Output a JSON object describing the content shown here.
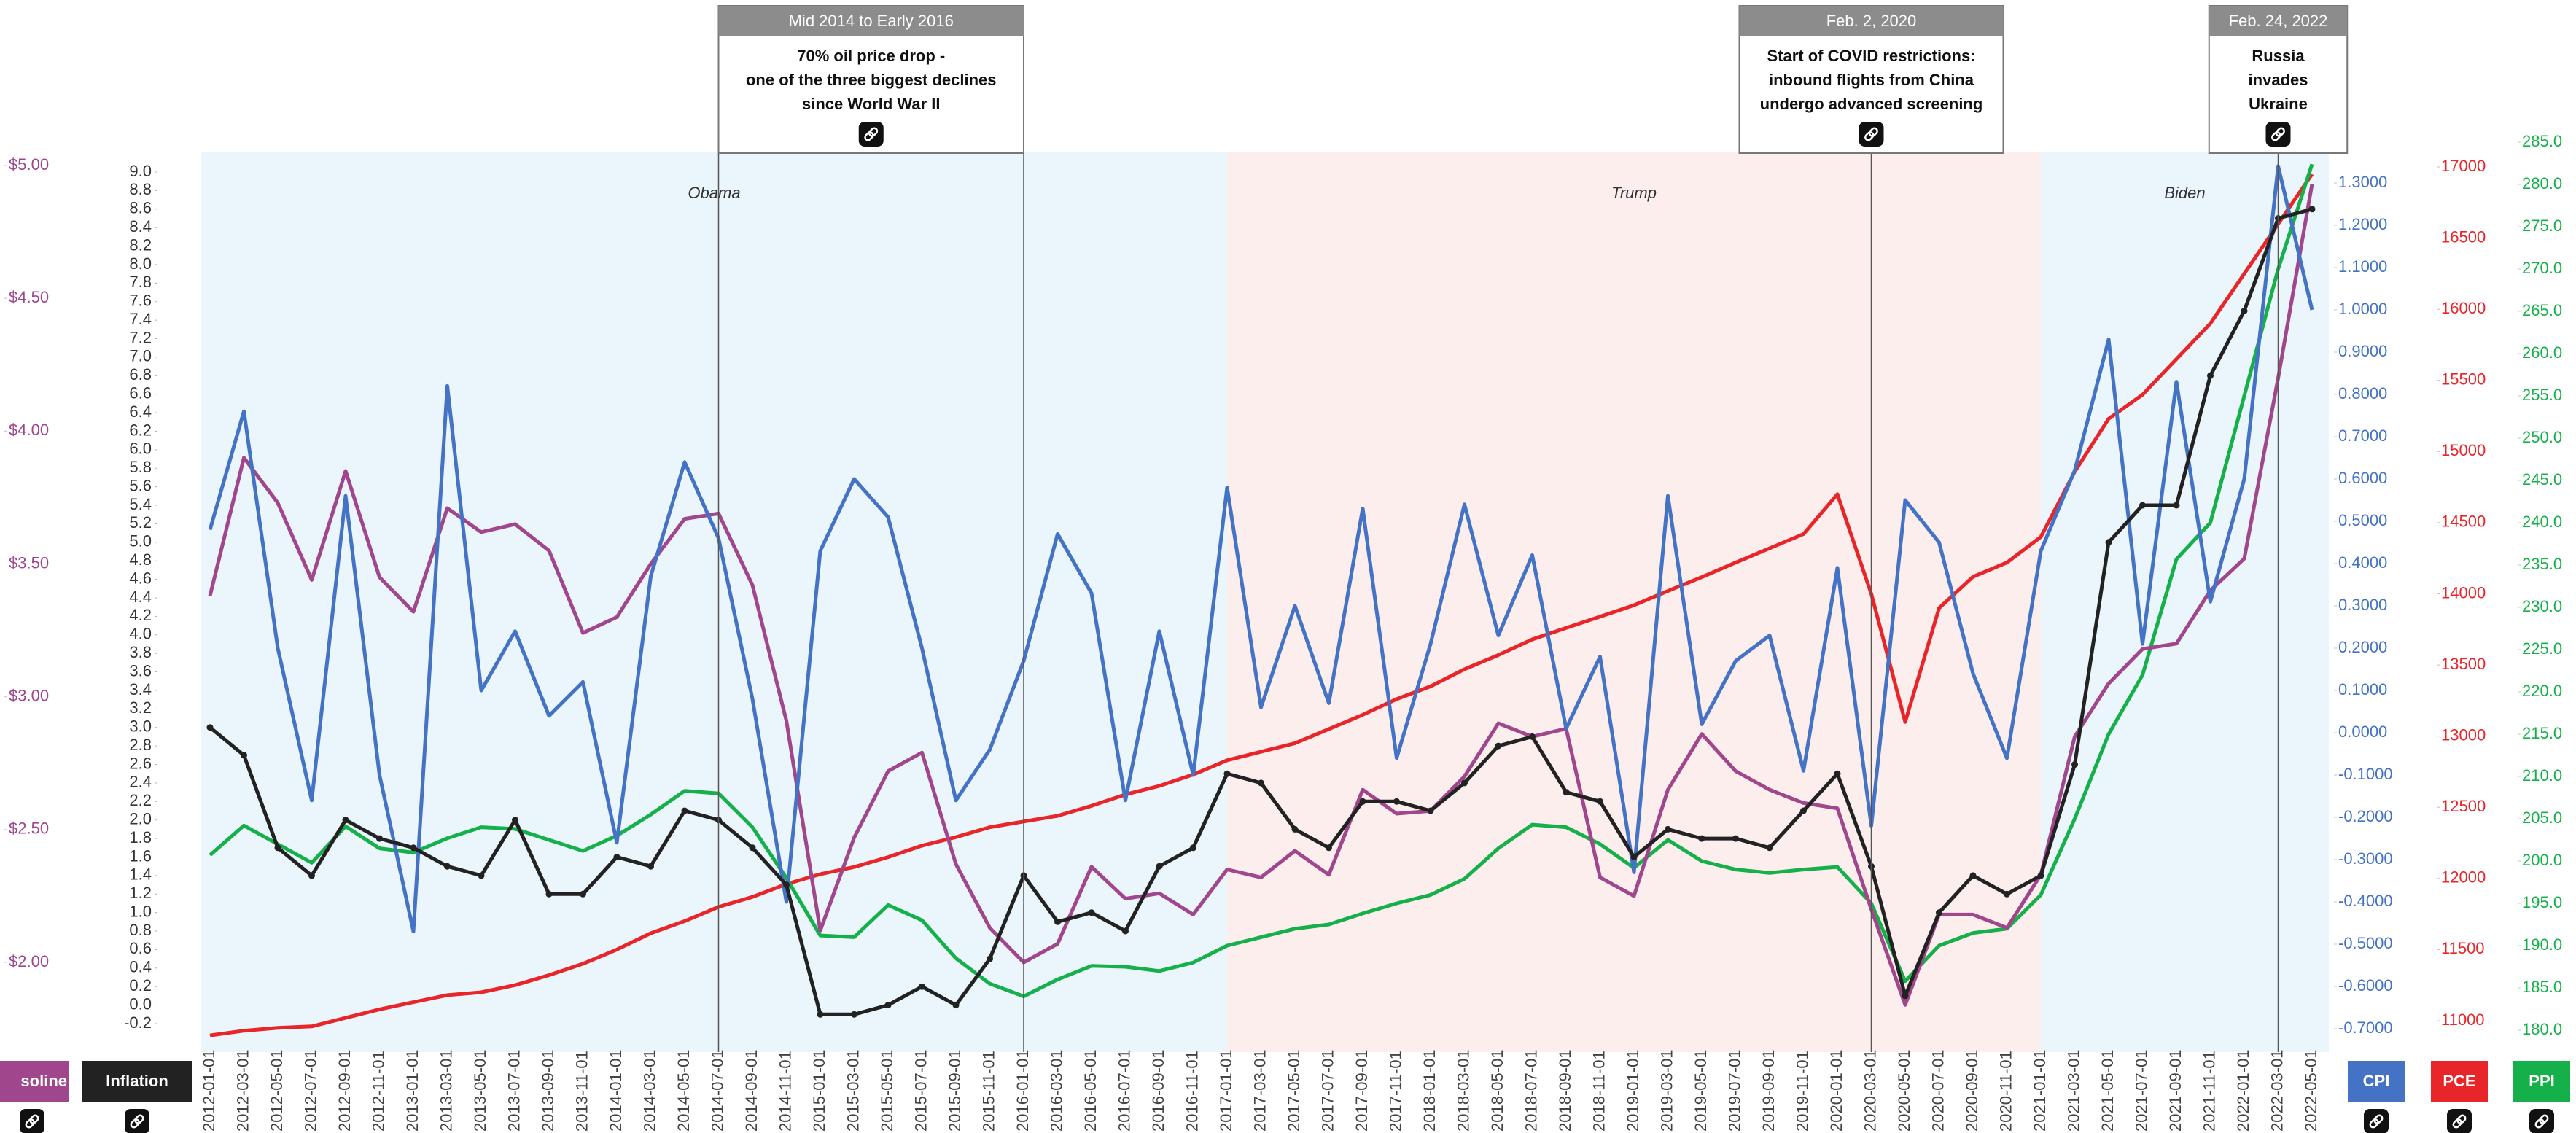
{
  "chart_data": {
    "type": "line",
    "categories": [
      "2012-01-01",
      "2012-03-01",
      "2012-05-01",
      "2012-07-01",
      "2012-09-01",
      "2012-11-01",
      "2013-01-01",
      "2013-03-01",
      "2013-05-01",
      "2013-07-01",
      "2013-09-01",
      "2013-11-01",
      "2014-01-01",
      "2014-03-01",
      "2014-05-01",
      "2014-07-01",
      "2014-09-01",
      "2014-11-01",
      "2015-01-01",
      "2015-03-01",
      "2015-05-01",
      "2015-07-01",
      "2015-09-01",
      "2015-11-01",
      "2016-01-01",
      "2016-03-01",
      "2016-05-01",
      "2016-07-01",
      "2016-09-01",
      "2016-11-01",
      "2017-01-01",
      "2017-03-01",
      "2017-05-01",
      "2017-07-01",
      "2017-09-01",
      "2017-11-01",
      "2018-01-01",
      "2018-03-01",
      "2018-05-01",
      "2018-07-01",
      "2018-09-01",
      "2018-11-01",
      "2019-01-01",
      "2019-03-01",
      "2019-05-01",
      "2019-07-01",
      "2019-09-01",
      "2019-11-01",
      "2020-01-01",
      "2020-03-01",
      "2020-05-01",
      "2020-07-01",
      "2020-09-01",
      "2020-11-01",
      "2021-01-01",
      "2021-03-01",
      "2021-05-01",
      "2021-07-01",
      "2021-09-01",
      "2021-11-01",
      "2022-01-01",
      "2022-03-01",
      "2022-05-01"
    ],
    "axes": [
      {
        "name": "Inflation",
        "lim": [
          -0.2,
          9.0
        ],
        "ticks": [
          -0.2,
          {
            "value": 0,
            "label": "0.0"
          },
          0.2,
          0.4,
          0.6,
          0.8,
          {
            "value": 1,
            "label": "1.0"
          },
          1.2,
          1.4,
          1.6,
          1.8,
          {
            "value": 2,
            "label": "2.0"
          },
          2.2,
          2.4,
          2.6,
          2.8,
          {
            "value": 3,
            "label": "3.0"
          },
          3.2,
          3.4,
          3.6,
          3.8,
          {
            "value": 4,
            "label": "4.0"
          },
          4.2,
          4.4,
          4.6,
          4.8,
          {
            "value": 5,
            "label": "5.0"
          },
          5.2,
          5.4,
          5.6,
          5.8,
          {
            "value": 6,
            "label": "6.0"
          },
          6.2,
          6.4,
          6.6,
          6.8,
          {
            "value": 7,
            "label": "7.0"
          },
          7.2,
          7.4,
          7.6,
          7.8,
          {
            "value": 8,
            "label": "8.0"
          },
          8.2,
          8.4,
          8.6,
          8.8,
          {
            "value": 9,
            "label": "9.0"
          }
        ]
      },
      {
        "name": "Gasoline",
        "lim": [
          2.0,
          5.0
        ],
        "ticks": [
          {
            "value": 2,
            "label": "$2.00"
          },
          {
            "value": 2.5,
            "label": "$2.50"
          },
          {
            "value": 3,
            "label": "$3.00"
          },
          {
            "value": 3.5,
            "label": "$3.50"
          },
          {
            "value": 4,
            "label": "$4.00"
          },
          {
            "value": 4.5,
            "label": "$4.50"
          },
          {
            "value": 5,
            "label": "$5.00"
          }
        ]
      },
      {
        "name": "CPI",
        "lim": [
          -0.7,
          1.3
        ],
        "ticks": [
          {
            "value": -0.7,
            "label": "-0.7000"
          },
          {
            "value": -0.6,
            "label": "-0.6000"
          },
          {
            "value": -0.5,
            "label": "-0.5000"
          },
          {
            "value": -0.4,
            "label": "-0.4000"
          },
          {
            "value": -0.3,
            "label": "-0.3000"
          },
          {
            "value": -0.2,
            "label": "-0.2000"
          },
          {
            "value": -0.1,
            "label": "-0.1000"
          },
          {
            "value": 0,
            "label": "0.0000"
          },
          {
            "value": 0.1,
            "label": "0.1000"
          },
          {
            "value": 0.2,
            "label": "0.2000"
          },
          {
            "value": 0.3,
            "label": "0.3000"
          },
          {
            "value": 0.4,
            "label": "0.4000"
          },
          {
            "value": 0.5,
            "label": "0.5000"
          },
          {
            "value": 0.6,
            "label": "0.6000"
          },
          {
            "value": 0.7,
            "label": "0.7000"
          },
          {
            "value": 0.8,
            "label": "0.8000"
          },
          {
            "value": 0.9,
            "label": "0.9000"
          },
          {
            "value": 1.0,
            "label": "1.0000"
          },
          {
            "value": 1.1,
            "label": "1.1000"
          },
          {
            "value": 1.2,
            "label": "1.2000"
          },
          {
            "value": 1.3,
            "label": "1.3000"
          }
        ]
      },
      {
        "name": "PCE",
        "lim": [
          11000,
          17000
        ],
        "ticks": [
          11000,
          11500,
          12000,
          12500,
          13000,
          13500,
          14000,
          14500,
          15000,
          15500,
          16000,
          16500,
          17000
        ]
      },
      {
        "name": "PPI",
        "lim": [
          180,
          285
        ],
        "ticks": [
          {
            "value": 180,
            "label": "180.0"
          },
          {
            "value": 185,
            "label": "185.0"
          },
          {
            "value": 190,
            "label": "190.0"
          },
          {
            "value": 195,
            "label": "195.0"
          },
          {
            "value": 200,
            "label": "200.0"
          },
          {
            "value": 205,
            "label": "205.0"
          },
          {
            "value": 210,
            "label": "210.0"
          },
          {
            "value": 215,
            "label": "215.0"
          },
          {
            "value": 220,
            "label": "220.0"
          },
          {
            "value": 225,
            "label": "225.0"
          },
          {
            "value": 230,
            "label": "230.0"
          },
          {
            "value": 235,
            "label": "235.0"
          },
          {
            "value": 240,
            "label": "240.0"
          },
          {
            "value": 245,
            "label": "245.0"
          },
          {
            "value": 250,
            "label": "250.0"
          },
          {
            "value": 255,
            "label": "255.0"
          },
          {
            "value": 260,
            "label": "260.0"
          },
          {
            "value": 265,
            "label": "265.0"
          },
          {
            "value": 270,
            "label": "270.0"
          },
          {
            "value": 275,
            "label": "275.0"
          },
          {
            "value": 280,
            "label": "280.0"
          },
          {
            "value": 285,
            "label": "285.0"
          }
        ]
      }
    ],
    "series": [
      {
        "name": "PCE",
        "color": "#e8262a",
        "axis": 3,
        "values": [
          10897,
          10930,
          10950,
          10960,
          11020,
          11080,
          11130,
          11180,
          11200,
          11250,
          11320,
          11400,
          11500,
          11615,
          11700,
          11800,
          11870,
          11960,
          12030,
          12080,
          12150,
          12230,
          12290,
          12360,
          12400,
          12440,
          12510,
          12590,
          12650,
          12730,
          12830,
          12890,
          12950,
          13050,
          13150,
          13260,
          13350,
          13470,
          13570,
          13680,
          13760,
          13840,
          13920,
          14020,
          14118,
          14220,
          14320,
          14420,
          14700,
          14000,
          13100,
          13900,
          14120,
          14220,
          14400,
          14858,
          15230,
          15400,
          15650,
          15900,
          16250,
          16600,
          16950
        ]
      },
      {
        "name": "PPI",
        "color": "#16b04a",
        "axis": 4,
        "values": [
          200.7,
          204.2,
          202.0,
          199.8,
          204.1,
          201.5,
          201.0,
          202.7,
          204.0,
          203.8,
          202.5,
          201.2,
          203.0,
          205.5,
          208.3,
          208.0,
          204.0,
          198.0,
          191.2,
          191.0,
          194.8,
          193.0,
          188.5,
          185.5,
          184.0,
          186.0,
          187.6,
          187.5,
          187.0,
          188.0,
          190.0,
          191.0,
          192.0,
          192.5,
          193.8,
          195.0,
          196.0,
          197.9,
          201.5,
          204.3,
          204.0,
          202.0,
          199.2,
          202.5,
          200.0,
          199.0,
          198.6,
          199.0,
          199.3,
          195.0,
          185.8,
          190.0,
          191.5,
          192.0,
          196.0,
          205.0,
          215.0,
          222.0,
          235.7,
          240.0,
          255.0,
          270.0,
          282.4
        ]
      },
      {
        "name": "Gasoline",
        "color": "#a0468c",
        "axis": 1,
        "values": [
          3.38,
          3.9,
          3.73,
          3.44,
          3.85,
          3.45,
          3.32,
          3.71,
          3.62,
          3.65,
          3.55,
          3.24,
          3.3,
          3.5,
          3.67,
          3.69,
          3.42,
          2.91,
          2.12,
          2.47,
          2.72,
          2.79,
          2.37,
          2.13,
          2.0,
          2.07,
          2.36,
          2.24,
          2.26,
          2.18,
          2.35,
          2.32,
          2.42,
          2.33,
          2.65,
          2.56,
          2.57,
          2.7,
          2.9,
          2.85,
          2.88,
          2.32,
          2.25,
          2.65,
          2.86,
          2.72,
          2.65,
          2.6,
          2.58,
          2.2,
          1.84,
          2.18,
          2.18,
          2.13,
          2.33,
          2.85,
          3.05,
          3.18,
          3.2,
          3.4,
          3.52,
          4.2,
          4.93
        ]
      },
      {
        "name": "CPI",
        "color": "#4472c4",
        "axis": 2,
        "values": [
          0.48,
          0.76,
          0.2,
          -0.16,
          0.56,
          -0.1,
          -0.47,
          0.82,
          0.1,
          0.24,
          0.04,
          0.12,
          -0.26,
          0.37,
          0.64,
          0.46,
          0.08,
          -0.4,
          0.43,
          0.6,
          0.51,
          0.2,
          -0.16,
          -0.04,
          0.17,
          0.47,
          0.33,
          -0.16,
          0.24,
          -0.1,
          0.58,
          0.06,
          0.3,
          0.07,
          0.53,
          -0.06,
          0.21,
          0.54,
          0.23,
          0.42,
          0.01,
          0.18,
          -0.33,
          0.56,
          0.02,
          0.17,
          0.23,
          -0.09,
          0.39,
          -0.22,
          0.55,
          0.45,
          0.14,
          -0.06,
          0.43,
          0.62,
          0.93,
          0.21,
          0.83,
          0.31,
          0.6,
          1.34,
          1.0
        ]
      },
      {
        "name": "Inflation",
        "color": "#222222",
        "axis": 0,
        "values": [
          3.0,
          2.7,
          1.7,
          1.4,
          2.0,
          1.8,
          1.7,
          1.5,
          1.4,
          2.0,
          1.2,
          1.2,
          1.6,
          1.5,
          2.1,
          2.0,
          1.7,
          1.3,
          -0.1,
          -0.1,
          0.0,
          0.2,
          0.0,
          0.5,
          1.4,
          0.9,
          1.0,
          0.8,
          1.5,
          1.7,
          2.5,
          2.4,
          1.9,
          1.7,
          2.2,
          2.2,
          2.1,
          2.4,
          2.8,
          2.9,
          2.3,
          2.2,
          1.6,
          1.9,
          1.8,
          1.8,
          1.7,
          2.1,
          2.5,
          1.5,
          0.1,
          1.0,
          1.4,
          1.2,
          1.4,
          2.6,
          5.0,
          5.4,
          5.4,
          6.8,
          7.5,
          8.5,
          8.6
        ]
      }
    ],
    "periods": [
      {
        "name": "Obama",
        "start": "2012-01-01"
      },
      {
        "name": "Trump",
        "start": "2017-01-01"
      },
      {
        "name": "Biden",
        "start": "2021-01-01"
      }
    ],
    "annotations": [
      {
        "header": "Mid 2014 to Early 2016",
        "text": [
          "70% oil price drop -",
          "one of the three biggest declines",
          "since World War II"
        ],
        "at": "2014-07-01",
        "end": "2016-01-01"
      },
      {
        "header": "Feb. 2, 2020",
        "text": [
          "Start of COVID restrictions:",
          "inbound flights from China",
          "undergo advanced screening"
        ],
        "at": "2020-03-01"
      },
      {
        "header": "Feb. 24, 2022",
        "text": [
          "Russia",
          "invades",
          "Ukraine"
        ],
        "at": "2022-03-01"
      }
    ],
    "legend": [
      "soline",
      "Inflation",
      "CPI",
      "PCE",
      "PPI"
    ]
  }
}
